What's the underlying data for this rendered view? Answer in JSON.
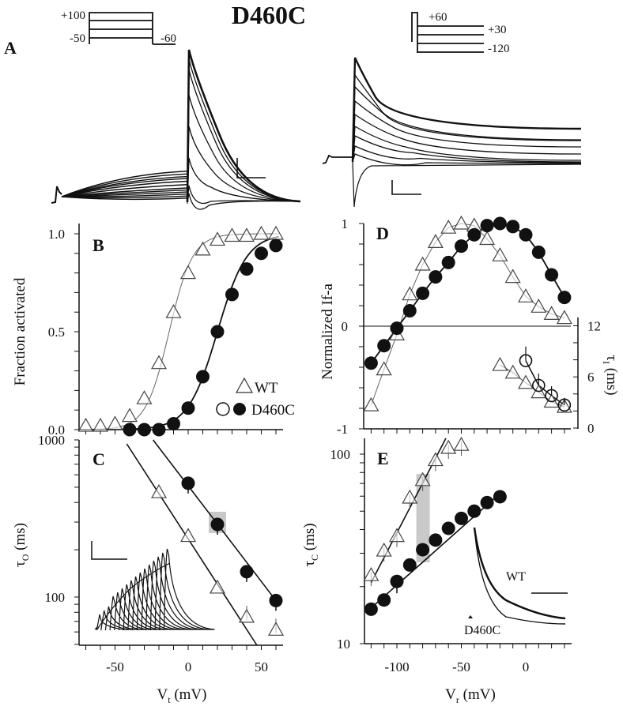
{
  "figure_title": "D460C",
  "panel_A": {
    "label": "A",
    "left_protocol": {
      "labels": [
        "+100",
        "-50",
        "-60"
      ]
    },
    "right_protocol": {
      "labels": [
        "+60",
        "+30",
        "-120"
      ]
    }
  },
  "legend": {
    "wt": "WT",
    "mut": "D460C"
  },
  "chart_data": [
    {
      "panel": "B",
      "type": "scatter",
      "title": "B",
      "xlabel": "",
      "ylabel": "Fraction activated",
      "xlim": [
        -75,
        65
      ],
      "ylim": [
        0,
        1
      ],
      "yticks": [
        "0.0",
        "0.5",
        "1.0"
      ],
      "series": [
        {
          "name": "WT",
          "marker": "open-triangle",
          "fit": "boltzmann",
          "x": [
            -70,
            -60,
            -50,
            -40,
            -30,
            -20,
            -10,
            0,
            10,
            20,
            30,
            40,
            50,
            60
          ],
          "y": [
            0.02,
            0.02,
            0.03,
            0.07,
            0.16,
            0.34,
            0.6,
            0.8,
            0.92,
            0.97,
            0.99,
            0.99,
            1.0,
            1.0
          ]
        },
        {
          "name": "D460C",
          "marker": "filled-circle",
          "fit": "boltzmann",
          "x": [
            -40,
            -30,
            -20,
            -10,
            0,
            10,
            20,
            30,
            40,
            50,
            60
          ],
          "y": [
            0.0,
            0.0,
            0.0,
            0.03,
            0.11,
            0.27,
            0.5,
            0.69,
            0.82,
            0.9,
            0.94
          ]
        }
      ],
      "legend": [
        "WT",
        "D460C"
      ],
      "legend_position": "bottom-right"
    },
    {
      "panel": "C",
      "type": "scatter",
      "title": "C",
      "xlabel": "Vt (mV)",
      "ylabel": "τO (ms)",
      "yscale": "log",
      "xlim": [
        -75,
        65
      ],
      "ylim": [
        50,
        1000
      ],
      "xticks": [
        "-50",
        "0",
        "50"
      ],
      "yticks": [
        "100",
        "1000"
      ],
      "series": [
        {
          "name": "WT",
          "marker": "open-triangle",
          "x": [
            -20,
            0,
            20,
            40,
            60
          ],
          "y": [
            465,
            245,
            115,
            75,
            62
          ]
        },
        {
          "name": "D460C",
          "marker": "filled-circle",
          "x": [
            0,
            20,
            40,
            60
          ],
          "y": [
            530,
            290,
            145,
            95
          ]
        }
      ],
      "highlight": {
        "x": 20,
        "series": "D460C"
      }
    },
    {
      "panel": "D",
      "type": "line",
      "title": "D",
      "xlabel": "",
      "ylabel": "Normalized If-a",
      "ylabel_right": "τI (ms)",
      "xlim": [
        -125,
        35
      ],
      "ylim": [
        -1,
        1
      ],
      "ylim_right": [
        0,
        12
      ],
      "yticks": [
        "-1",
        "0",
        "1"
      ],
      "yticks_right": [
        "0",
        "6",
        "12"
      ],
      "series": [
        {
          "name": "WT",
          "marker": "open-triangle",
          "x": [
            -120,
            -110,
            -100,
            -90,
            -80,
            -70,
            -60,
            -50,
            -40,
            -30,
            -20,
            -10,
            0,
            10,
            20,
            30
          ],
          "y": [
            -0.77,
            -0.42,
            -0.08,
            0.31,
            0.6,
            0.82,
            0.96,
            1.0,
            0.98,
            0.85,
            0.69,
            0.48,
            0.29,
            0.19,
            0.12,
            0.08
          ]
        },
        {
          "name": "D460C",
          "marker": "filled-circle",
          "x": [
            -120,
            -110,
            -100,
            -90,
            -80,
            -70,
            -60,
            -50,
            -40,
            -30,
            -20,
            -10,
            0,
            10,
            20,
            30
          ],
          "y": [
            -0.36,
            -0.19,
            -0.02,
            0.15,
            0.32,
            0.48,
            0.62,
            0.78,
            0.89,
            0.98,
            1.0,
            0.97,
            0.89,
            0.72,
            0.5,
            0.28
          ]
        },
        {
          "name": "WT τI",
          "marker": "open-triangle",
          "axis": "right",
          "x": [
            -20,
            -10,
            0,
            10,
            20,
            30
          ],
          "y": [
            7.4,
            6.5,
            5.3,
            4.2,
            3.1,
            2.5
          ]
        },
        {
          "name": "D460C τI",
          "marker": "open-circle",
          "axis": "right",
          "x": [
            0,
            10,
            20,
            30
          ],
          "y": [
            7.9,
            5.0,
            3.8,
            2.7
          ]
        }
      ]
    },
    {
      "panel": "E",
      "type": "scatter",
      "title": "E",
      "xlabel": "Vr (mV)",
      "ylabel": "τC (ms)",
      "yscale": "log",
      "xlim": [
        -125,
        35
      ],
      "ylim": [
        10,
        115
      ],
      "xticks": [
        "-100",
        "-50",
        "0"
      ],
      "yticks": [
        "10",
        "100"
      ],
      "series": [
        {
          "name": "WT",
          "marker": "open-triangle",
          "x": [
            -120,
            -110,
            -100,
            -90,
            -80,
            -70,
            -60,
            -50
          ],
          "y": [
            23,
            31,
            37,
            59,
            73,
            93,
            108,
            112
          ]
        },
        {
          "name": "D460C",
          "marker": "filled-circle",
          "x": [
            -120,
            -110,
            -100,
            -90,
            -80,
            -70,
            -60,
            -50,
            -40,
            -30,
            -20
          ],
          "y": [
            15.2,
            17,
            21.3,
            26,
            31.3,
            35.2,
            40.6,
            45.8,
            50,
            55.5,
            59.6
          ]
        }
      ],
      "highlight": {
        "x": -80
      },
      "inset_labels": [
        "WT",
        "D460C"
      ]
    }
  ]
}
